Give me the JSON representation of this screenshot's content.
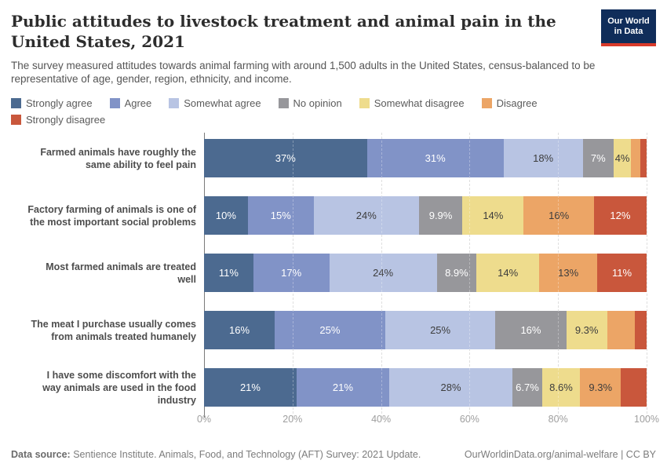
{
  "header": {
    "title": "Public attitudes to livestock treatment and animal pain in the United States, 2021",
    "subtitle": "The survey measured attitudes towards animal farming with around 1,500 adults in the United States, census-balanced to be representative of age, gender, region, ethnicity, and income.",
    "logo": {
      "line1": "Our World",
      "line2": "in Data",
      "bg_color": "#102d5a",
      "accent_color": "#d93a2a"
    }
  },
  "chart_data": {
    "type": "bar",
    "stacked": true,
    "orientation": "horizontal",
    "unit": "%",
    "xlim": [
      0,
      100
    ],
    "grid": true,
    "legend_position": "top",
    "x_ticks": [
      "0%",
      "20%",
      "40%",
      "60%",
      "80%",
      "100%"
    ],
    "categories": [
      "Farmed animals have roughly the same ability to feel pain",
      "Factory farming of animals is one of the most important social problems",
      "Most farmed animals are treated well",
      "The meat I purchase usually comes from animals treated humanely",
      "I have some discomfort with the way animals are used in the food industry"
    ],
    "series": [
      {
        "name": "Strongly agree",
        "color": "#4c6a90",
        "label_color": "#ffffff",
        "values": [
          37,
          10,
          11,
          16,
          21
        ]
      },
      {
        "name": "Agree",
        "color": "#8193c7",
        "label_color": "#ffffff",
        "values": [
          31,
          15,
          17,
          25,
          21
        ]
      },
      {
        "name": "Somewhat agree",
        "color": "#b8c4e3",
        "label_color": "#3d3d3d",
        "values": [
          18,
          24,
          24,
          25,
          28
        ]
      },
      {
        "name": "No opinion",
        "color": "#97979b",
        "label_color": "#ffffff",
        "values": [
          7,
          9.9,
          8.9,
          16,
          6.7
        ]
      },
      {
        "name": "Somewhat disagree",
        "color": "#eedc8d",
        "label_color": "#3d3d3d",
        "values": [
          4,
          14,
          14,
          9.3,
          8.6
        ]
      },
      {
        "name": "Disagree",
        "color": "#eca566",
        "label_color": "#3d3d3d",
        "values": [
          2,
          16,
          13,
          6.2,
          9.3
        ]
      },
      {
        "name": "Strongly disagree",
        "color": "#c9573c",
        "label_color": "#ffffff",
        "values": [
          1.5,
          12,
          11,
          2.7,
          5.8
        ]
      }
    ],
    "bar_labels": [
      [
        "37%",
        "31%",
        "18%",
        "7%",
        "4%",
        null,
        null
      ],
      [
        "10%",
        "15%",
        "24%",
        "9.9%",
        "14%",
        "16%",
        "12%"
      ],
      [
        "11%",
        "17%",
        "24%",
        "8.9%",
        "14%",
        "13%",
        "11%"
      ],
      [
        "16%",
        "25%",
        "25%",
        "16%",
        "9.3%",
        null,
        null
      ],
      [
        "21%",
        "21%",
        "28%",
        "6.7%",
        "8.6%",
        "9.3%",
        null
      ]
    ]
  },
  "footer": {
    "source_label": "Data source:",
    "source_text": "Sentience Institute. Animals, Food, and Technology (AFT) Survey: 2021 Update.",
    "credit": "OurWorldinData.org/animal-welfare | CC BY"
  }
}
